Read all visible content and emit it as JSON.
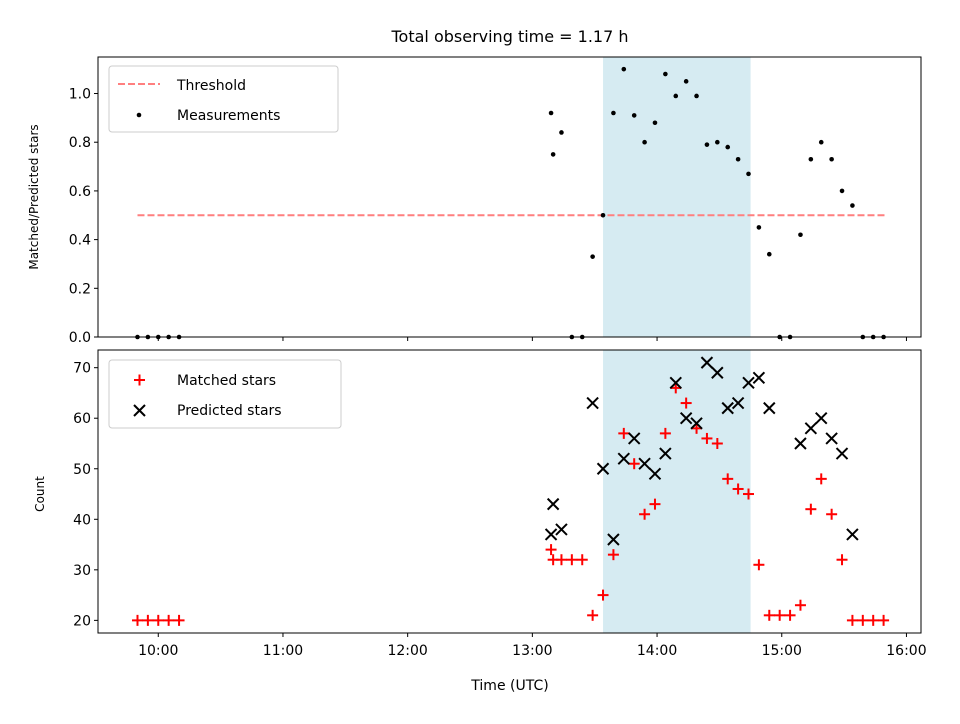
{
  "chart_data": [
    {
      "type": "scatter",
      "title": "Total observing time = 1.17 h",
      "xlabel": "",
      "ylabel": "Matched/Predicted stars",
      "xlim": [
        "09:31",
        "16:07"
      ],
      "ylim": [
        0,
        1.15
      ],
      "yticks": [
        "0.0",
        "0.2",
        "0.4",
        "0.6",
        "0.8",
        "1.0"
      ],
      "shaded_interval": [
        "13:34",
        "14:45"
      ],
      "legend": {
        "placement": "top-left",
        "entries": [
          "Threshold",
          "Measurements"
        ]
      },
      "threshold": {
        "name": "Threshold",
        "y": 0.5,
        "x": [
          "09:50",
          "15:50"
        ],
        "color": "#ff7f7f"
      },
      "series": [
        {
          "name": "Measurements",
          "color": "#000000",
          "marker": "dot",
          "x": [
            "09:50",
            "09:55",
            "10:00",
            "10:05",
            "10:10",
            "13:09",
            "13:10",
            "13:14",
            "13:19",
            "13:24",
            "13:29",
            "13:34",
            "13:39",
            "13:44",
            "13:49",
            "13:54",
            "13:59",
            "14:04",
            "14:09",
            "14:14",
            "14:19",
            "14:24",
            "14:29",
            "14:34",
            "14:39",
            "14:44",
            "14:49",
            "14:54",
            "14:59",
            "15:04",
            "15:09",
            "15:14",
            "15:19",
            "15:24",
            "15:29",
            "15:34",
            "15:39",
            "15:44",
            "15:49"
          ],
          "y": [
            0,
            0,
            0,
            0,
            0,
            0.92,
            0.75,
            0.84,
            0,
            0,
            0.33,
            0.5,
            0.92,
            1.1,
            0.91,
            0.8,
            0.88,
            1.08,
            0.99,
            1.05,
            0.99,
            0.79,
            0.8,
            0.78,
            0.73,
            0.67,
            0.45,
            0.34,
            0,
            0,
            0.42,
            0.73,
            0.8,
            0.73,
            0.6,
            0.54,
            0,
            0,
            0
          ]
        }
      ]
    },
    {
      "type": "scatter",
      "title": "",
      "xlabel": "Time (UTC)",
      "ylabel": "Count",
      "xlim": [
        "09:31",
        "16:07"
      ],
      "ylim": [
        17.5,
        73.5
      ],
      "xticks": [
        "10:00",
        "11:00",
        "12:00",
        "13:00",
        "14:00",
        "15:00",
        "16:00"
      ],
      "yticks": [
        "20",
        "30",
        "40",
        "50",
        "60",
        "70"
      ],
      "shaded_interval": [
        "13:34",
        "14:45"
      ],
      "legend": {
        "placement": "top-left",
        "entries": [
          "Matched stars",
          "Predicted stars"
        ]
      },
      "series": [
        {
          "name": "Matched stars",
          "color": "#ff0000",
          "marker": "plus",
          "x": [
            "09:50",
            "09:55",
            "10:00",
            "10:05",
            "10:10",
            "13:09",
            "13:10",
            "13:14",
            "13:19",
            "13:24",
            "13:29",
            "13:34",
            "13:39",
            "13:44",
            "13:49",
            "13:54",
            "13:59",
            "14:04",
            "14:09",
            "14:14",
            "14:19",
            "14:24",
            "14:29",
            "14:34",
            "14:39",
            "14:44",
            "14:49",
            "14:54",
            "14:59",
            "15:04",
            "15:09",
            "15:14",
            "15:19",
            "15:24",
            "15:29",
            "15:34",
            "15:39",
            "15:44",
            "15:49"
          ],
          "y": [
            20,
            20,
            20,
            20,
            20,
            34,
            32,
            32,
            32,
            32,
            21,
            25,
            33,
            57,
            51,
            41,
            43,
            57,
            66,
            63,
            58,
            56,
            55,
            48,
            46,
            45,
            31,
            21,
            21,
            21,
            23,
            42,
            48,
            41,
            32,
            20,
            20,
            20,
            20
          ]
        },
        {
          "name": "Predicted stars",
          "color": "#000000",
          "marker": "x",
          "x": [
            "13:09",
            "13:10",
            "13:14",
            "13:29",
            "13:34",
            "13:39",
            "13:44",
            "13:49",
            "13:54",
            "13:59",
            "14:04",
            "14:09",
            "14:14",
            "14:19",
            "14:24",
            "14:29",
            "14:34",
            "14:39",
            "14:44",
            "14:49",
            "14:54",
            "15:09",
            "15:14",
            "15:19",
            "15:24",
            "15:29",
            "15:34"
          ],
          "y": [
            37,
            43,
            38,
            63,
            50,
            36,
            52,
            56,
            51,
            49,
            53,
            67,
            60,
            59,
            71,
            69,
            62,
            63,
            67,
            68,
            62,
            55,
            58,
            60,
            56,
            53,
            37
          ]
        }
      ]
    }
  ]
}
